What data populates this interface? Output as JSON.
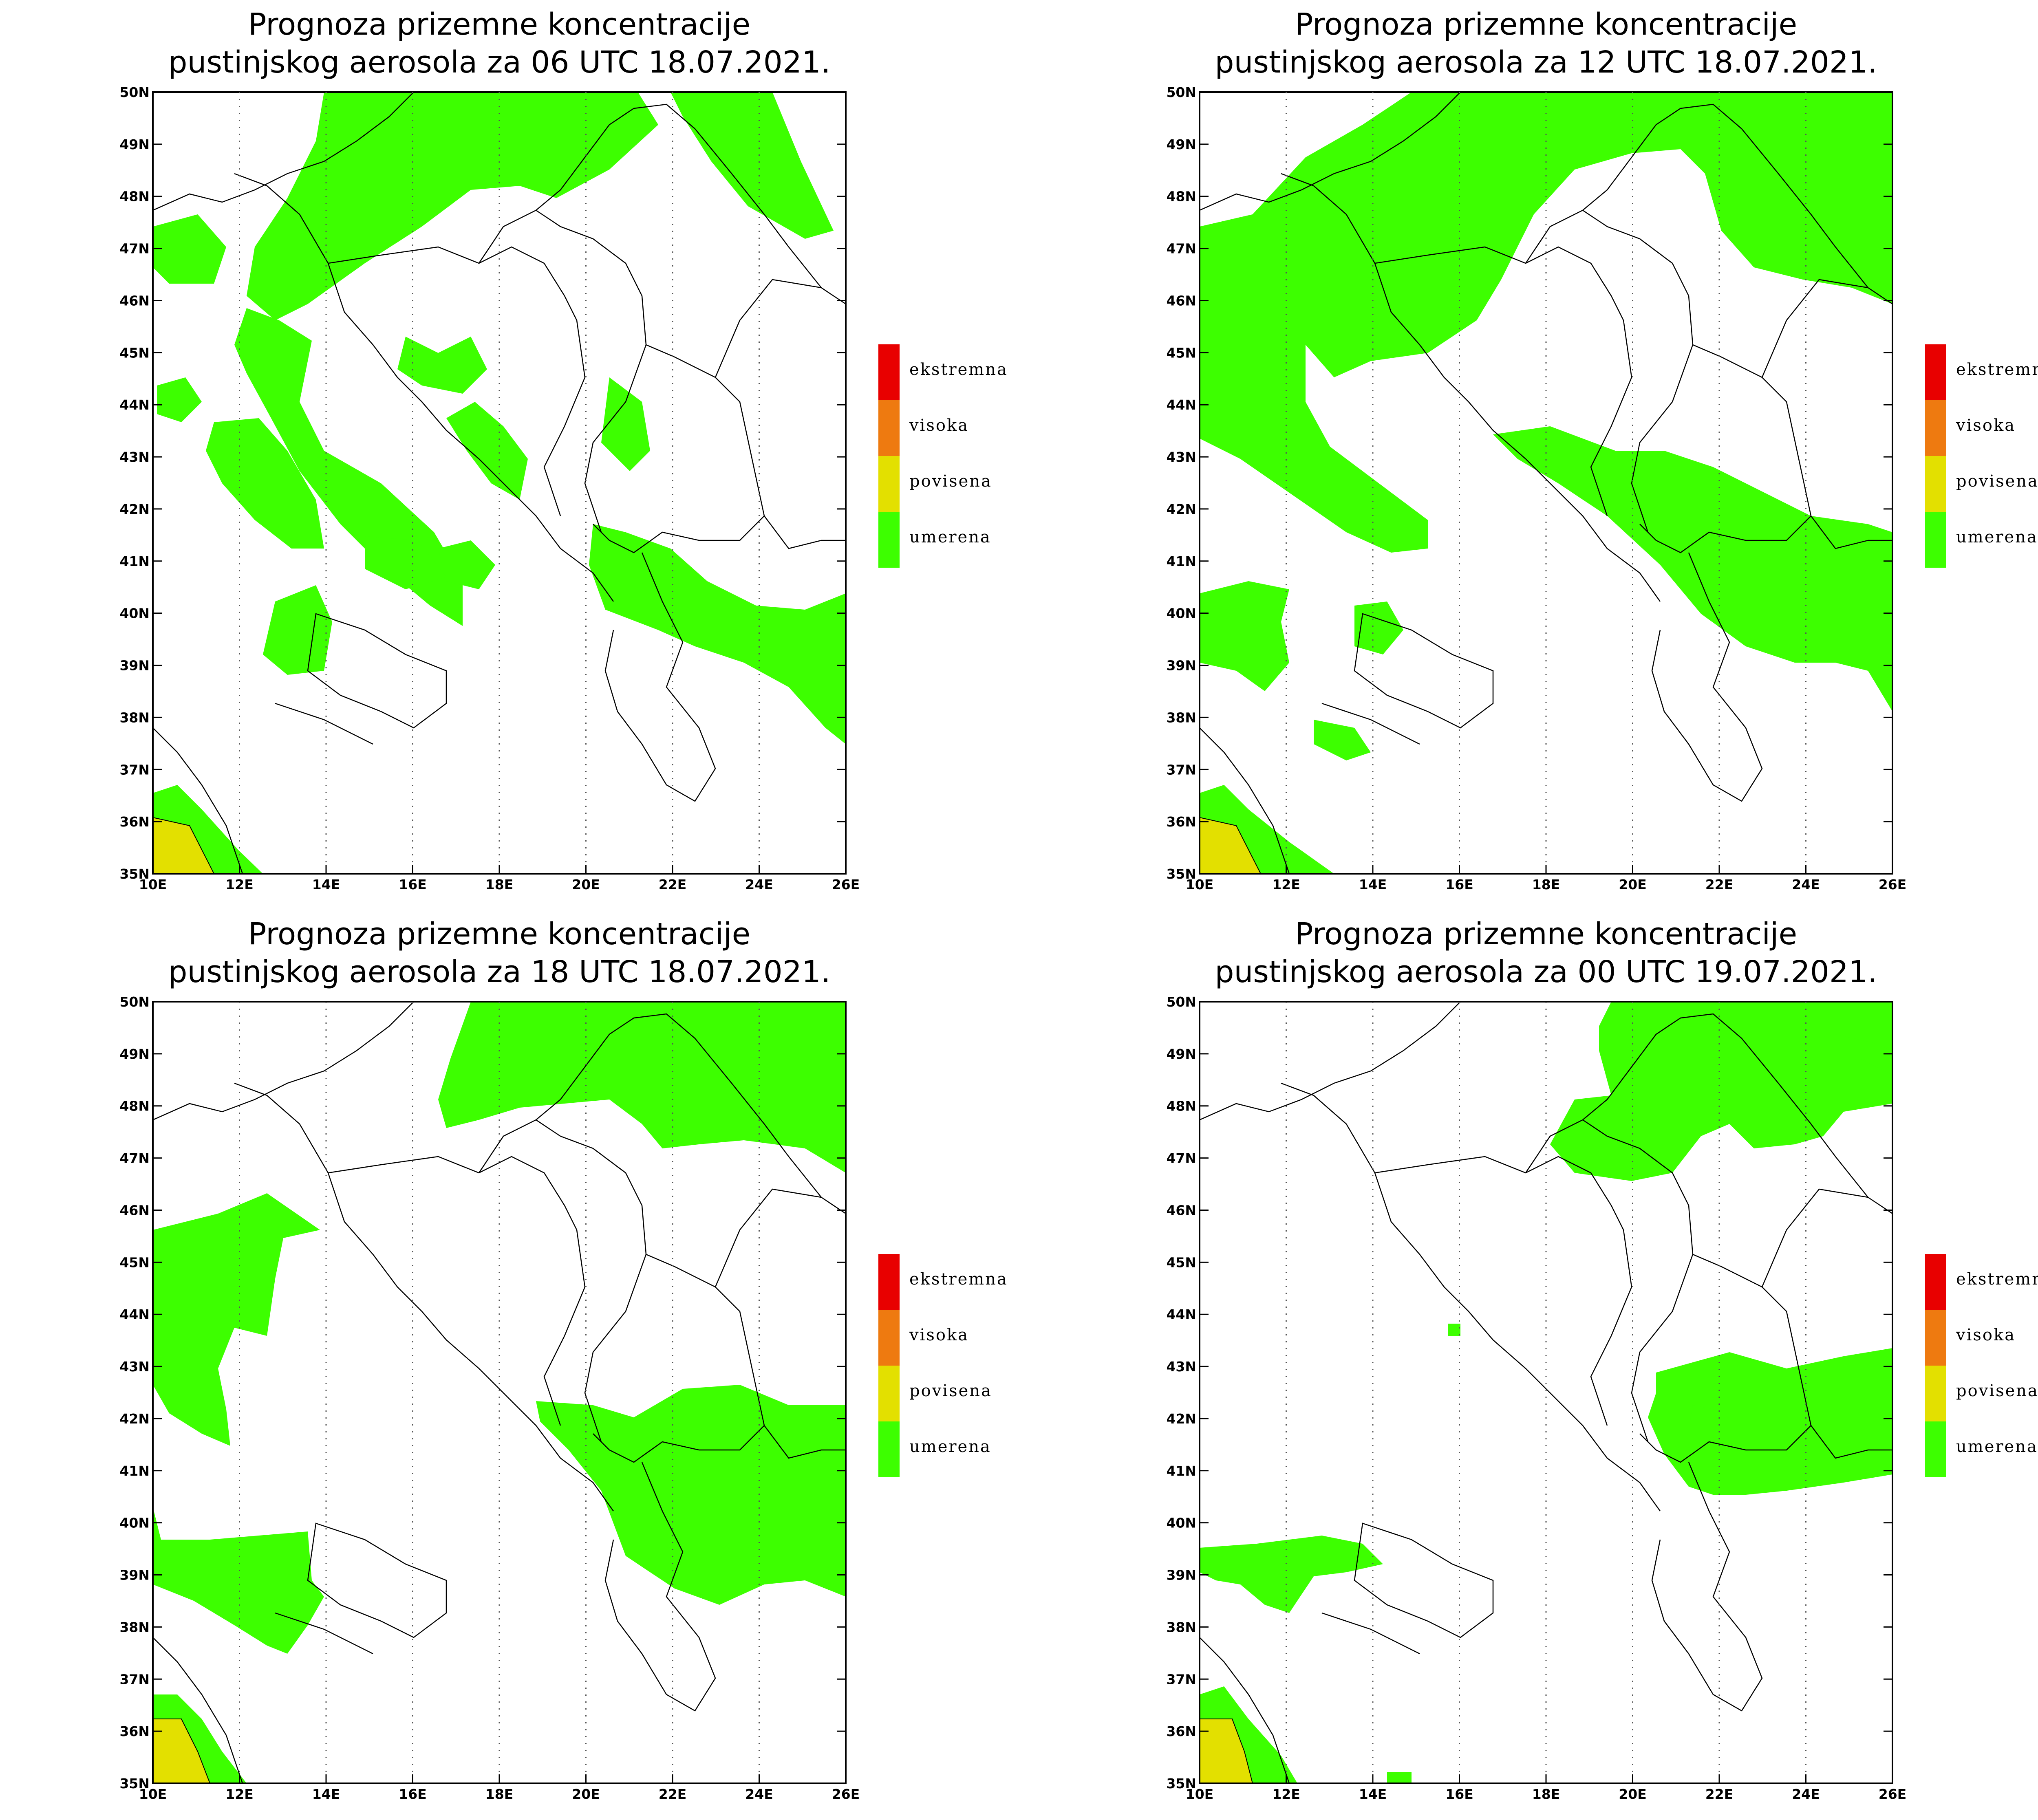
{
  "panels": [
    {
      "title_line1": "Prognoza prizemne koncentracije",
      "title_line2": "pustinjskog aerosola za 06 UTC 18.07.2021.",
      "legend_label": "legend-06"
    },
    {
      "title_line1": "Prognoza prizemne koncentracije",
      "title_line2": "pustinjskog aerosola za 12 UTC 18.07.2021.",
      "legend_label": "legend-12"
    },
    {
      "title_line1": "Prognoza prizemne koncentracije",
      "title_line2": "pustinjskog aerosola za 18 UTC 18.07.2021.",
      "legend_label": "legend-18"
    },
    {
      "title_line1": "Prognoza prizemne koncentracije",
      "title_line2": "pustinjskog aerosola za 00 UTC 19.07.2021.",
      "legend_label": "legend-00"
    }
  ],
  "map_extent": {
    "lon": [
      10,
      26
    ],
    "lat": [
      35,
      50
    ]
  },
  "lon_labels": [
    "10E",
    "12E",
    "14E",
    "16E",
    "18E",
    "20E",
    "22E",
    "24E",
    "26E"
  ],
  "lat_labels": [
    "35N",
    "36N",
    "37N",
    "38N",
    "39N",
    "40N",
    "41N",
    "42N",
    "43N",
    "44N",
    "45N",
    "46N",
    "47N",
    "48N",
    "49N",
    "50N"
  ],
  "legend": [
    {
      "label": "ekstremna",
      "color": "#e80000"
    },
    {
      "label": "visoka",
      "color": "#ee7a10"
    },
    {
      "label": "povisena",
      "color": "#e3e000"
    },
    {
      "label": "umerena",
      "color": "#3dff00"
    }
  ],
  "colors": {
    "umerena": "#3dff00",
    "povisena": "#e3e000",
    "border": "#000000"
  }
}
